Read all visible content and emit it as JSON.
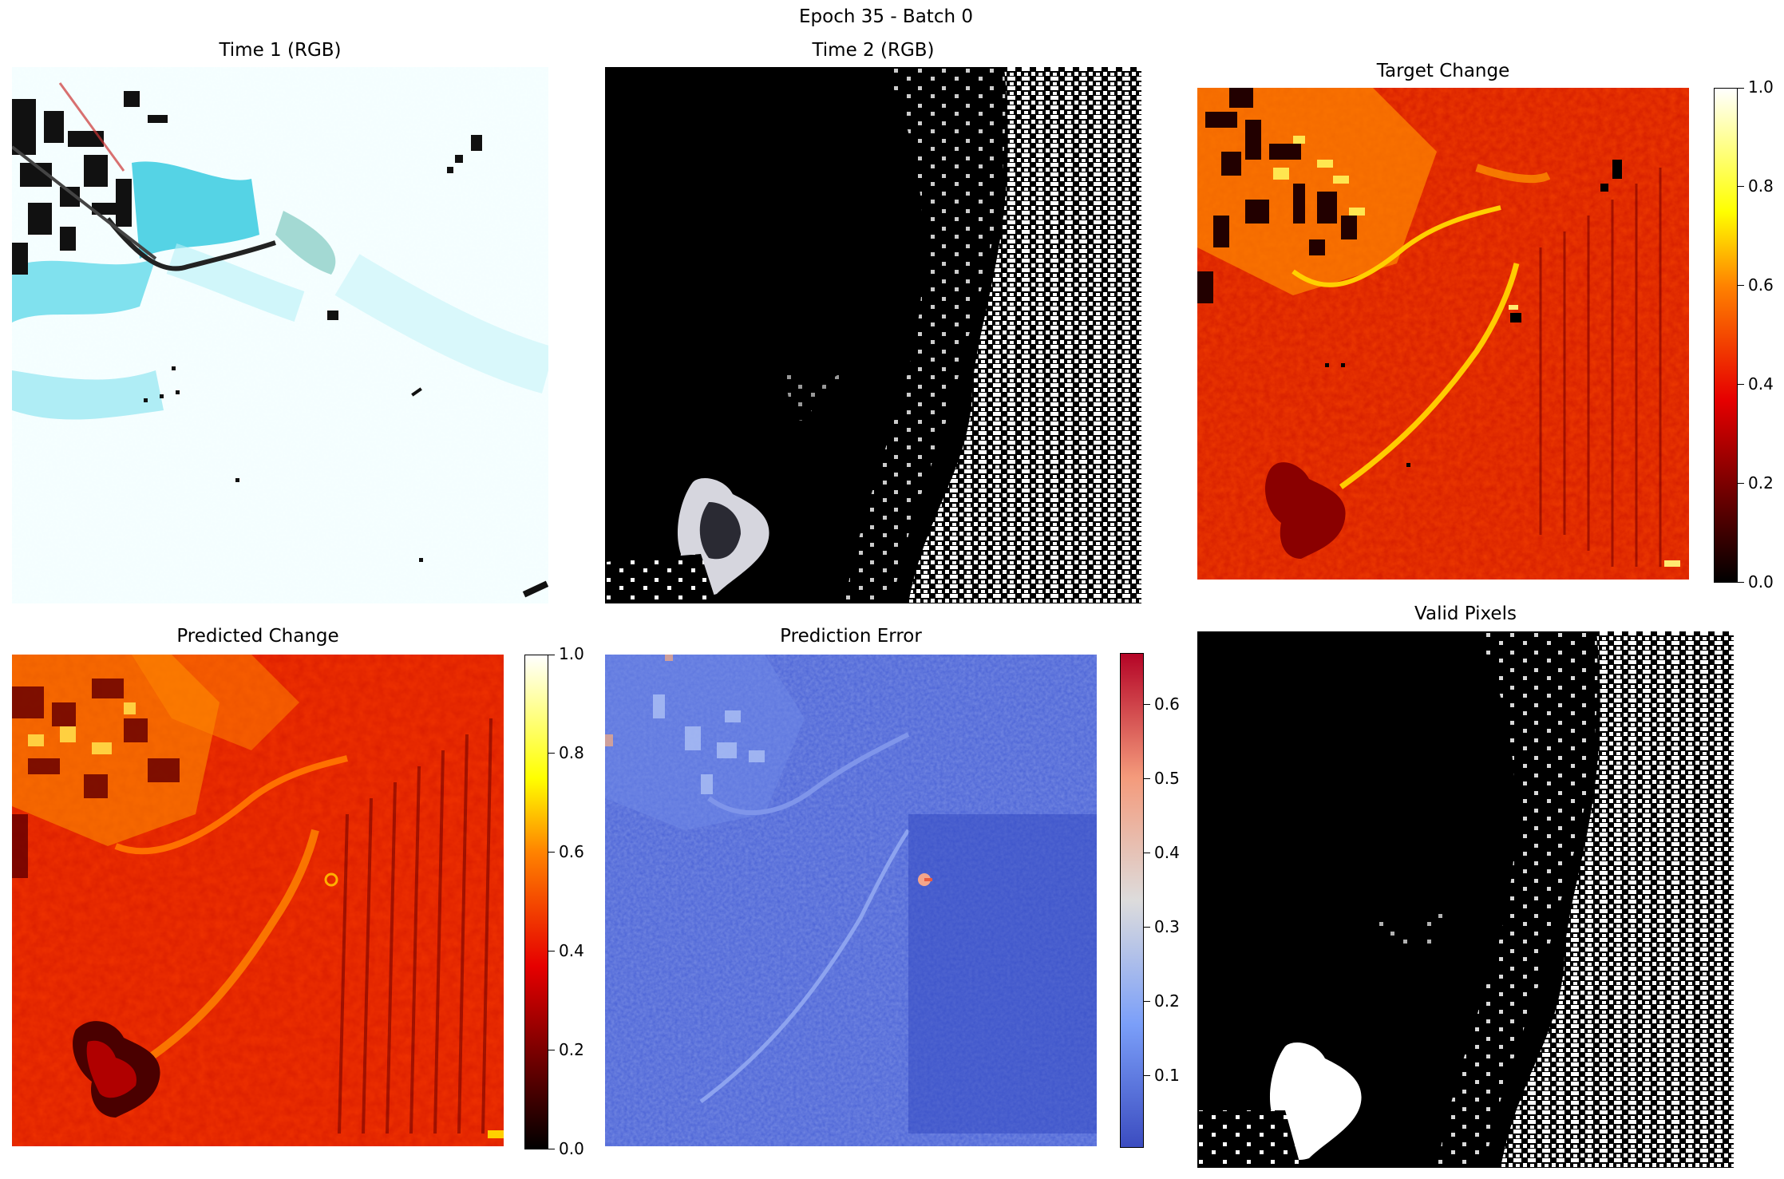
{
  "figure": {
    "suptitle": "Epoch 35 - Batch 0"
  },
  "panels": {
    "time1": {
      "title": "Time 1 (RGB)"
    },
    "time2": {
      "title": "Time 2 (RGB)"
    },
    "target": {
      "title": "Target Change"
    },
    "predicted": {
      "title": "Predicted Change"
    },
    "error": {
      "title": "Prediction Error"
    },
    "valid": {
      "title": "Valid Pixels"
    }
  },
  "colorbars": {
    "target": {
      "colormap": "hot",
      "ticks": [
        "0.0",
        "0.2",
        "0.4",
        "0.6",
        "0.8",
        "1.0"
      ]
    },
    "predicted": {
      "colormap": "hot",
      "ticks": [
        "0.0",
        "0.2",
        "0.4",
        "0.6",
        "0.8",
        "1.0"
      ]
    },
    "error": {
      "colormap": "coolwarm",
      "ticks": [
        "0.1",
        "0.2",
        "0.3",
        "0.4",
        "0.5",
        "0.6"
      ]
    }
  },
  "colors": {
    "hot_dark": "#000000",
    "hot_red": "#e60000",
    "hot_orange": "#ff8000",
    "hot_yellow": "#ffff00",
    "hot_white": "#ffffff",
    "cw_blue": "#3b4cc0",
    "cw_light": "#dddddd",
    "cw_red": "#b40426"
  }
}
